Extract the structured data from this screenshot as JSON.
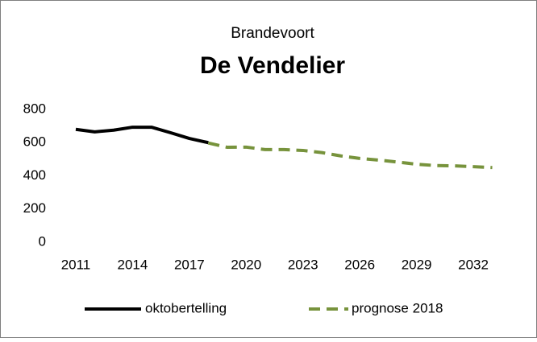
{
  "chart_data": {
    "type": "line",
    "subtitle": "Brandevoort",
    "title": "De Vendelier",
    "x": [
      2011,
      2012,
      2013,
      2014,
      2015,
      2016,
      2017,
      2018,
      2019,
      2020,
      2021,
      2022,
      2023,
      2024,
      2025,
      2026,
      2027,
      2028,
      2029,
      2030,
      2031,
      2032,
      2033
    ],
    "series": [
      {
        "name": "oktobertelling",
        "color": "#000000",
        "dash": false,
        "values": [
          680,
          665,
          675,
          693,
          693,
          660,
          625,
          600,
          null,
          null,
          null,
          null,
          null,
          null,
          null,
          null,
          null,
          null,
          null,
          null,
          null,
          null,
          null
        ]
      },
      {
        "name": "prognose 2018",
        "color": "#77933c",
        "dash": true,
        "values": [
          null,
          null,
          null,
          null,
          null,
          null,
          null,
          598,
          572,
          573,
          558,
          558,
          553,
          540,
          520,
          505,
          495,
          483,
          470,
          462,
          460,
          455,
          450
        ]
      }
    ],
    "xlim": [
      2010,
      2034
    ],
    "xticks": [
      2011,
      2014,
      2017,
      2020,
      2023,
      2026,
      2029,
      2032
    ],
    "ylim": [
      0,
      800
    ],
    "yticks": [
      0,
      200,
      400,
      600,
      800
    ],
    "grid": false,
    "legend": "bottom"
  }
}
